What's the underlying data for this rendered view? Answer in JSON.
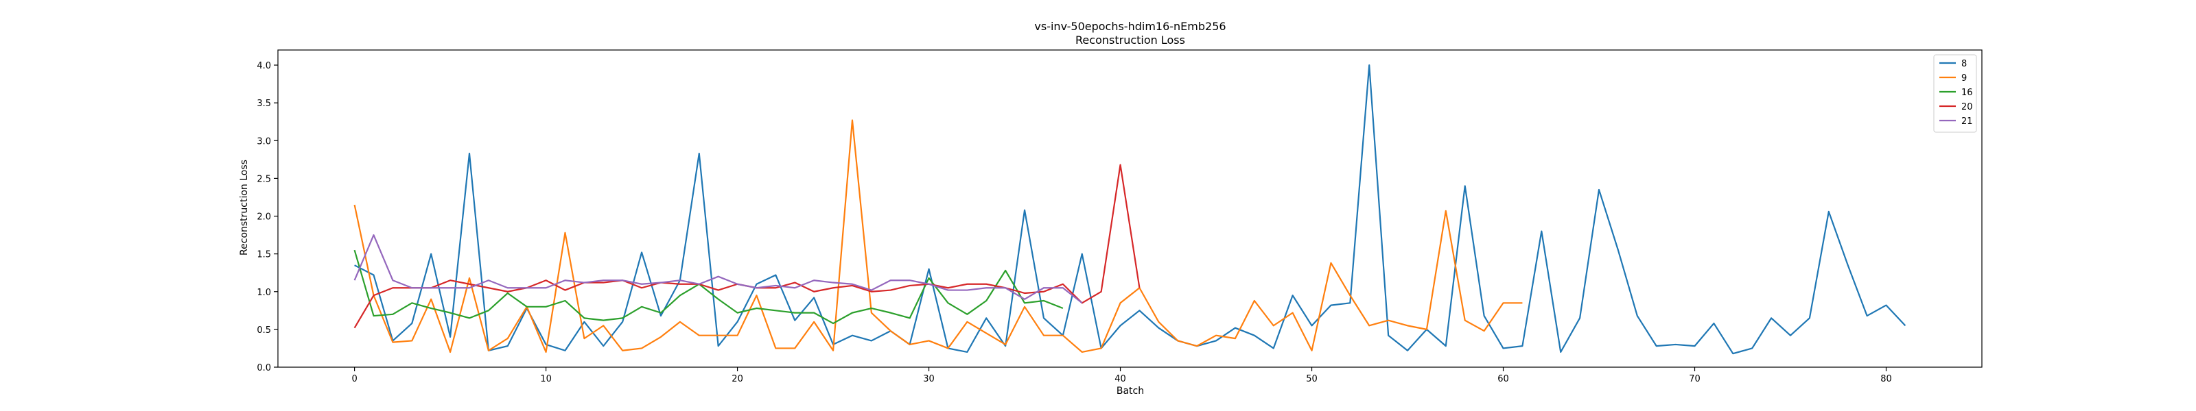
{
  "chart_data": {
    "type": "line",
    "title": "vs-inv-50epochs-hdim16-nEmb256",
    "subtitle": "Reconstruction Loss",
    "xlabel": "Batch",
    "ylabel": "Reconstruction Loss",
    "xlim": [
      -4,
      85
    ],
    "ylim": [
      0,
      4.2
    ],
    "xticks": [
      0,
      10,
      20,
      30,
      40,
      50,
      60,
      70,
      80
    ],
    "yticks": [
      "0.0",
      "0.5",
      "1.0",
      "1.5",
      "2.0",
      "2.5",
      "3.0",
      "3.5",
      "4.0"
    ],
    "grid": false,
    "legend_position": "top-right",
    "series": [
      {
        "name": "8",
        "color": "#1f77b4",
        "values": [
          1.35,
          1.22,
          0.35,
          0.58,
          1.5,
          0.4,
          2.83,
          0.22,
          0.28,
          0.78,
          0.3,
          0.22,
          0.6,
          0.28,
          0.6,
          1.52,
          0.68,
          1.15,
          2.83,
          0.28,
          0.6,
          1.1,
          1.22,
          0.62,
          0.92,
          0.3,
          0.42,
          0.35,
          0.48,
          0.3,
          1.3,
          0.25,
          0.2,
          0.65,
          0.28,
          2.08,
          0.65,
          0.42,
          1.5,
          0.25,
          0.55,
          0.75,
          0.52,
          0.35,
          0.28,
          0.35,
          0.52,
          0.42,
          0.25,
          0.95,
          0.55,
          0.82,
          0.85,
          4.0,
          0.42,
          0.22,
          0.5,
          0.28,
          2.4,
          0.68,
          0.25,
          0.28,
          1.8,
          0.2,
          0.65,
          2.35,
          1.55,
          0.68,
          0.28,
          0.3,
          0.28,
          0.58,
          0.18,
          0.25,
          0.65,
          0.42,
          0.65,
          2.06,
          1.35,
          0.68,
          0.82,
          0.55
        ]
      },
      {
        "name": "9",
        "color": "#ff7f0e",
        "values": [
          2.15,
          0.95,
          0.33,
          0.35,
          0.9,
          0.2,
          1.18,
          0.22,
          0.38,
          0.8,
          0.2,
          1.78,
          0.38,
          0.55,
          0.22,
          0.25,
          0.4,
          0.6,
          0.42,
          0.42,
          0.42,
          0.95,
          0.25,
          0.25,
          0.6,
          0.22,
          3.27,
          0.72,
          0.48,
          0.3,
          0.35,
          0.25,
          0.6,
          0.45,
          0.3,
          0.8,
          0.42,
          0.42,
          0.2,
          0.25,
          0.85,
          1.05,
          0.6,
          0.35,
          0.28,
          0.42,
          0.38,
          0.88,
          0.55,
          0.72,
          0.22,
          1.38,
          0.95,
          0.55,
          0.62,
          0.55,
          0.5,
          2.07,
          0.62,
          0.48,
          0.85,
          0.85
        ]
      },
      {
        "name": "16",
        "color": "#2ca02c",
        "values": [
          1.55,
          0.68,
          0.7,
          0.85,
          0.78,
          0.72,
          0.65,
          0.75,
          0.98,
          0.8,
          0.8,
          0.88,
          0.65,
          0.62,
          0.65,
          0.8,
          0.72,
          0.95,
          1.1,
          0.9,
          0.72,
          0.78,
          0.75,
          0.72,
          0.72,
          0.58,
          0.72,
          0.78,
          0.72,
          0.65,
          1.18,
          0.85,
          0.7,
          0.88,
          1.28,
          0.85,
          0.88,
          0.78
        ]
      },
      {
        "name": "20",
        "color": "#d62728",
        "values": [
          0.52,
          0.95,
          1.05,
          1.05,
          1.05,
          1.15,
          1.1,
          1.05,
          1.0,
          1.05,
          1.15,
          1.02,
          1.12,
          1.12,
          1.15,
          1.05,
          1.12,
          1.1,
          1.1,
          1.02,
          1.1,
          1.05,
          1.05,
          1.12,
          1.0,
          1.05,
          1.08,
          1.0,
          1.02,
          1.08,
          1.1,
          1.05,
          1.1,
          1.1,
          1.05,
          0.98,
          1.0,
          1.1,
          0.85,
          1.0,
          2.68,
          1.05
        ]
      },
      {
        "name": "21",
        "color": "#9467bd",
        "values": [
          1.15,
          1.75,
          1.15,
          1.05,
          1.05,
          1.05,
          1.05,
          1.15,
          1.05,
          1.05,
          1.05,
          1.15,
          1.12,
          1.15,
          1.15,
          1.1,
          1.12,
          1.15,
          1.1,
          1.2,
          1.1,
          1.05,
          1.08,
          1.05,
          1.15,
          1.12,
          1.1,
          1.02,
          1.15,
          1.15,
          1.1,
          1.02,
          1.02,
          1.05,
          1.05,
          0.9,
          1.05,
          1.05,
          0.85
        ]
      }
    ]
  }
}
